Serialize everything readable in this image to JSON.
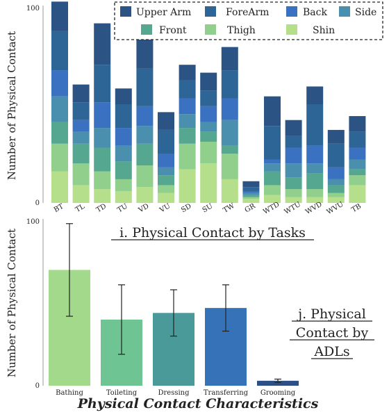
{
  "chart_data": [
    {
      "type": "bar",
      "stacked": true,
      "caption": "i. Physical Contact by Tasks",
      "ylabel": "Number of Physical Contact",
      "ylim": [
        0,
        100
      ],
      "yticks": [
        "0",
        "100"
      ],
      "categories": [
        "BT",
        "TL",
        "TD",
        "TU",
        "VD",
        "VU",
        "SD",
        "SU",
        "TW",
        "GR",
        "WTD",
        "WTU",
        "WVD",
        "WVU",
        "TB"
      ],
      "legend_position": "top-right",
      "series": [
        {
          "name": "Shin",
          "color": "#b5df8a",
          "values": [
            16,
            9,
            7,
            6,
            8,
            5,
            17,
            20,
            12,
            2,
            4,
            3,
            3,
            3,
            9
          ]
        },
        {
          "name": "Thigh",
          "color": "#90d08c",
          "values": [
            14,
            11,
            9,
            6,
            11,
            4,
            13,
            11,
            13,
            1,
            5,
            4,
            4,
            2,
            5
          ]
        },
        {
          "name": "Front",
          "color": "#55a88f",
          "values": [
            11,
            10,
            12,
            9,
            11,
            5,
            8,
            5,
            4,
            1,
            7,
            6,
            8,
            4,
            3
          ]
        },
        {
          "name": "Side",
          "color": "#4a8fae",
          "values": [
            13,
            6,
            10,
            8,
            9,
            4,
            7,
            5,
            13,
            1,
            4,
            7,
            5,
            3,
            5
          ]
        },
        {
          "name": "Back",
          "color": "#3b71c1",
          "values": [
            13,
            6,
            13,
            9,
            10,
            7,
            8,
            8,
            11,
            1,
            2,
            8,
            9,
            6,
            6
          ]
        },
        {
          "name": "ForeArm",
          "color": "#2d6597",
          "values": [
            20,
            9,
            19,
            12,
            19,
            12,
            9,
            8,
            14,
            2,
            17,
            6,
            21,
            12,
            8
          ]
        },
        {
          "name": "Upper Arm",
          "color": "#2b5485",
          "values": [
            15,
            9,
            21,
            8,
            15,
            9,
            8,
            9,
            12,
            3,
            15,
            8,
            9,
            7,
            8
          ]
        }
      ]
    },
    {
      "type": "bar",
      "caption": "j. Physical Contact by ADLs",
      "ylabel": "Number of Physical Contact",
      "xlabel": "Physical Contact Characteristics",
      "ylim": [
        0,
        100
      ],
      "yticks": [
        "0",
        "100"
      ],
      "categories": [
        "Bathing",
        "Toileting",
        "Dressing",
        "Transferring",
        "Grooming"
      ],
      "values": [
        70,
        40,
        44,
        47,
        3
      ],
      "error": [
        28,
        21,
        14,
        14,
        1
      ],
      "colors": [
        "#a2d98a",
        "#6ec493",
        "#4a9a99",
        "#3672b8",
        "#2c4f86"
      ]
    }
  ]
}
